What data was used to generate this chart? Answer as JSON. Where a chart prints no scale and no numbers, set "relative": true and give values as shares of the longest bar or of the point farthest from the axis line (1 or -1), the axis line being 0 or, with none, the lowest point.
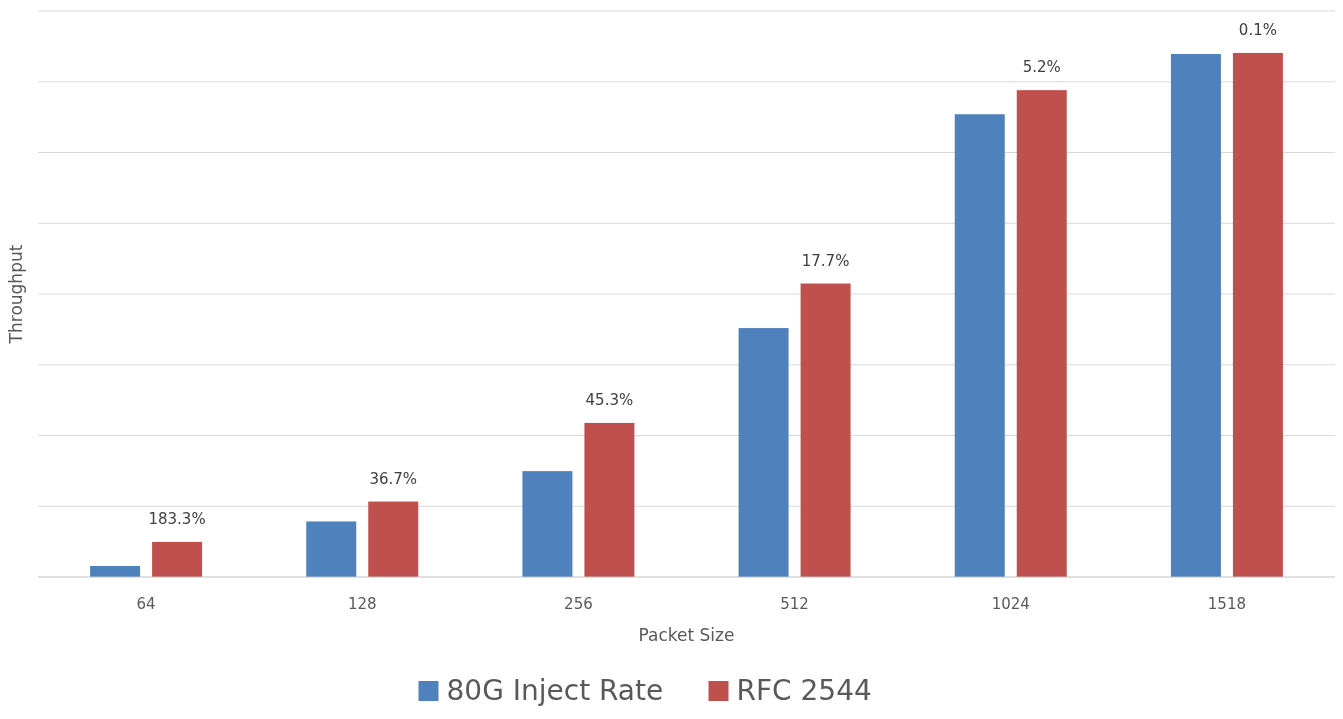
{
  "chart_data": {
    "type": "bar",
    "relative": true,
    "xlabel": "Packet Size",
    "ylabel": "Throughput",
    "categories": [
      "64",
      "128",
      "256",
      "512",
      "1024",
      "1518"
    ],
    "series": [
      {
        "name": "80G Inject Rate",
        "color": "#4f81bd",
        "values": [
          0.021,
          0.106,
          0.202,
          0.475,
          0.883,
          0.998
        ]
      },
      {
        "name": "RFC 2544",
        "color": "#c0504d",
        "values": [
          0.067,
          0.144,
          0.294,
          0.56,
          0.929,
          1.0
        ]
      }
    ],
    "annotations": [
      "183.3%",
      "36.7%",
      "45.3%",
      "17.7%",
      "5.2%",
      "0.1%"
    ],
    "grid": true,
    "legend": "bottom"
  }
}
